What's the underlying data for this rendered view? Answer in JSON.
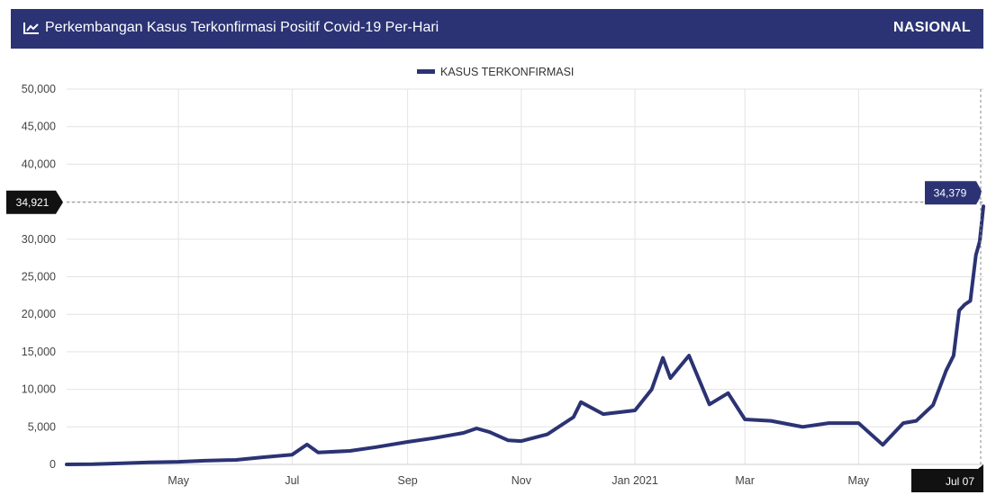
{
  "header": {
    "title": "Perkembangan Kasus Terkonfirmasi Positif Covid-19 Per-Hari",
    "scope": "NASIONAL",
    "icon": "line-chart-icon"
  },
  "colors": {
    "header_bg": "#2b3374",
    "series": "#2b3374",
    "tag_dark": "#111111"
  },
  "chart_data": {
    "type": "line",
    "legend": "KASUS TERKONFIRMASI",
    "legend_position": "top-center",
    "grid": true,
    "x_range": [
      "2020-03-02",
      "2021-07-07"
    ],
    "ylim": [
      0,
      50000
    ],
    "yticks": [
      0,
      5000,
      10000,
      15000,
      20000,
      25000,
      30000,
      35000,
      40000,
      45000,
      50000
    ],
    "ytick_labels": [
      "0",
      "5,000",
      "10,000",
      "15,000",
      "20,000",
      "25,000",
      "30,000",
      "35,000",
      "40,000",
      "45,000",
      "50,000"
    ],
    "xticks": [
      {
        "label": "May",
        "date": "2020-05-01"
      },
      {
        "label": "Jul",
        "date": "2020-07-01"
      },
      {
        "label": "Sep",
        "date": "2020-09-01"
      },
      {
        "label": "Nov",
        "date": "2020-11-01"
      },
      {
        "label": "Jan 2021",
        "date": "2021-01-01"
      },
      {
        "label": "Mar",
        "date": "2021-03-01"
      },
      {
        "label": "May",
        "date": "2021-05-01"
      }
    ],
    "crosshair": {
      "y_value": 34921,
      "y_label": "34,921",
      "x_label": "Jul 07",
      "x_date": "2021-07-07"
    },
    "tooltip": {
      "value": 34379,
      "label": "34,379"
    },
    "series": [
      {
        "name": "KASUS TERKONFIRMASI",
        "points": [
          [
            "2020-03-02",
            2
          ],
          [
            "2020-03-16",
            20
          ],
          [
            "2020-04-01",
            150
          ],
          [
            "2020-04-15",
            280
          ],
          [
            "2020-05-01",
            350
          ],
          [
            "2020-05-15",
            490
          ],
          [
            "2020-06-01",
            600
          ],
          [
            "2020-06-15",
            950
          ],
          [
            "2020-07-01",
            1300
          ],
          [
            "2020-07-09",
            2650
          ],
          [
            "2020-07-15",
            1600
          ],
          [
            "2020-08-01",
            1800
          ],
          [
            "2020-08-15",
            2300
          ],
          [
            "2020-09-01",
            3000
          ],
          [
            "2020-09-15",
            3500
          ],
          [
            "2020-10-01",
            4200
          ],
          [
            "2020-10-08",
            4800
          ],
          [
            "2020-10-15",
            4300
          ],
          [
            "2020-10-25",
            3200
          ],
          [
            "2020-11-01",
            3100
          ],
          [
            "2020-11-15",
            4000
          ],
          [
            "2020-11-29",
            6300
          ],
          [
            "2020-12-03",
            8300
          ],
          [
            "2020-12-15",
            6700
          ],
          [
            "2021-01-01",
            7200
          ],
          [
            "2021-01-10",
            10000
          ],
          [
            "2021-01-16",
            14200
          ],
          [
            "2021-01-20",
            11500
          ],
          [
            "2021-01-30",
            14500
          ],
          [
            "2021-02-10",
            8000
          ],
          [
            "2021-02-20",
            9500
          ],
          [
            "2021-03-01",
            6000
          ],
          [
            "2021-03-15",
            5800
          ],
          [
            "2021-04-01",
            5000
          ],
          [
            "2021-04-15",
            5500
          ],
          [
            "2021-05-01",
            5500
          ],
          [
            "2021-05-14",
            2600
          ],
          [
            "2021-05-25",
            5500
          ],
          [
            "2021-06-01",
            5800
          ],
          [
            "2021-06-10",
            7900
          ],
          [
            "2021-06-17",
            12500
          ],
          [
            "2021-06-21",
            14500
          ],
          [
            "2021-06-24",
            20500
          ],
          [
            "2021-06-27",
            21300
          ],
          [
            "2021-06-30",
            21800
          ],
          [
            "2021-07-03",
            27900
          ],
          [
            "2021-07-05",
            29700
          ],
          [
            "2021-07-07",
            34379
          ]
        ]
      }
    ]
  }
}
